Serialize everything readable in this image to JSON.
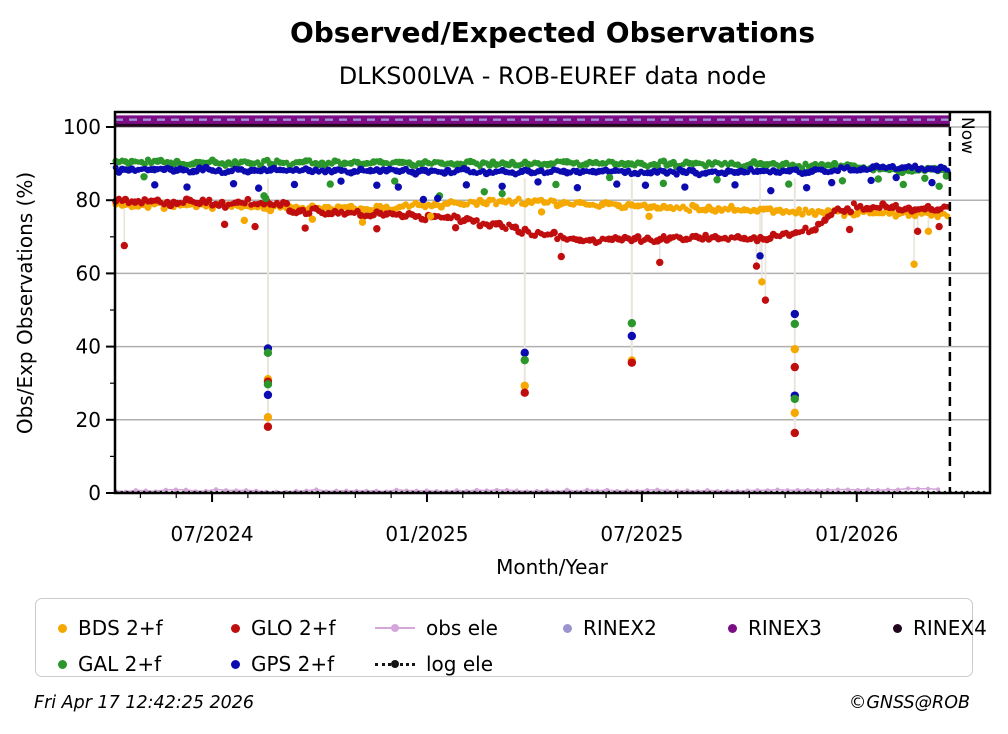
{
  "title": "Observed/Expected Observations",
  "subtitle": "DLKS00LVA - ROB-EUREF data node",
  "footer": {
    "generated": "Fri Apr 17 12:42:25 2026",
    "credit": "©GNSS@ROB"
  },
  "now": {
    "label": "Now",
    "month": 20.6
  },
  "colors": {
    "bds": "#f5a800",
    "glo": "#c00d0d",
    "gal": "#2b962b",
    "gps": "#0b0bb0",
    "obs_ele": "#d4a6da",
    "log_ele": "#141414",
    "rinex2": "#9b94d0",
    "rinex3": "#7c0d86",
    "rinex4": "#23071f",
    "grid": "#b0b0b0",
    "stem": "#e9e5dd"
  },
  "chart_data": {
    "type": "scatter",
    "title": "Observed/Expected Observations",
    "subtitle": "DLKS00LVA - ROB-EUREF data node",
    "xlabel": "Month/Year",
    "ylabel": "Obs/Exp Observations (%)",
    "x_unit": "months since 2024-07",
    "xlim": [
      -2.71,
      21.72
    ],
    "ylim": [
      0,
      104.1
    ],
    "x_ticks": [
      {
        "m": 0,
        "label": "07/2024"
      },
      {
        "m": 6,
        "label": "01/2025"
      },
      {
        "m": 12,
        "label": "07/2025"
      },
      {
        "m": 18,
        "label": "01/2026"
      }
    ],
    "x_minor_step": 1,
    "y_ticks": [
      0,
      20,
      40,
      60,
      80,
      100
    ],
    "y_minor_ticks": [
      10,
      30,
      50,
      70,
      90
    ],
    "grid": "horizontal",
    "legend_position": "bottom",
    "series": [
      {
        "name": "BDS 2+f",
        "type": "band",
        "color": "#f5a800",
        "r": 3.3,
        "step": 0.09,
        "jitter": 0.65,
        "trend": [
          [
            -2.71,
            78.8
          ],
          [
            0,
            78.5
          ],
          [
            2,
            78.1
          ],
          [
            3.5,
            77.7
          ],
          [
            5,
            77.9
          ],
          [
            6.5,
            78.9
          ],
          [
            8,
            79.8
          ],
          [
            9.5,
            79.5
          ],
          [
            11,
            78.9
          ],
          [
            12.5,
            78.1
          ],
          [
            14,
            77.7
          ],
          [
            15.5,
            77.3
          ],
          [
            16.8,
            76.7
          ],
          [
            18,
            76.5
          ],
          [
            19.5,
            76.2
          ],
          [
            20.55,
            76.0
          ]
        ],
        "outliers": [
          [
            0.9,
            74.5
          ],
          [
            2.8,
            74.8
          ],
          [
            4.2,
            74.0
          ],
          [
            6.1,
            75.6
          ],
          [
            9.2,
            76.8
          ],
          [
            12.2,
            75.6
          ],
          [
            15.35,
            57.7
          ],
          [
            19.6,
            62.5
          ],
          [
            20.0,
            71.5
          ]
        ]
      },
      {
        "name": "GLO 2+f",
        "type": "band",
        "color": "#c00d0d",
        "r": 3.3,
        "step": 0.09,
        "jitter": 0.8,
        "trend": [
          [
            -2.71,
            79.8
          ],
          [
            0,
            79.3
          ],
          [
            1.9,
            78.8
          ],
          [
            2.4,
            77.0
          ],
          [
            5,
            76.3
          ],
          [
            7,
            75.0
          ],
          [
            8,
            73.0
          ],
          [
            9,
            71.0
          ],
          [
            10,
            69.6
          ],
          [
            11,
            69.2
          ],
          [
            12,
            69.2
          ],
          [
            13,
            69.4
          ],
          [
            14,
            69.9
          ],
          [
            15,
            69.4
          ],
          [
            16,
            70.4
          ],
          [
            16.9,
            72.5
          ],
          [
            17.4,
            77.0
          ],
          [
            18,
            78.3
          ],
          [
            19,
            78.0
          ],
          [
            20.55,
            77.5
          ]
        ],
        "outliers": [
          [
            -2.45,
            67.6
          ],
          [
            0.35,
            73.4
          ],
          [
            1.2,
            72.8
          ],
          [
            2.6,
            72.4
          ],
          [
            4.6,
            72.2
          ],
          [
            6.8,
            72.5
          ],
          [
            9.75,
            64.6
          ],
          [
            12.5,
            63.0
          ],
          [
            15.2,
            62.0
          ],
          [
            15.45,
            52.7
          ],
          [
            17.8,
            72.0
          ],
          [
            19.7,
            71.5
          ],
          [
            20.3,
            72.8
          ]
        ]
      },
      {
        "name": "GAL 2+f",
        "type": "band",
        "color": "#2b962b",
        "r": 3.3,
        "step": 0.09,
        "jitter": 0.55,
        "trend": [
          [
            -2.71,
            90.4
          ],
          [
            2,
            90.1
          ],
          [
            6,
            90.0
          ],
          [
            10,
            90.1
          ],
          [
            14,
            89.9
          ],
          [
            17,
            89.5
          ],
          [
            18.5,
            88.7
          ],
          [
            19.5,
            88.3
          ],
          [
            20.55,
            88.2
          ]
        ],
        "outliers": [
          [
            -1.9,
            86.4
          ],
          [
            1.45,
            81.2
          ],
          [
            1.5,
            80.5
          ],
          [
            3.3,
            84.4
          ],
          [
            5.1,
            85.2
          ],
          [
            6.35,
            81.2
          ],
          [
            7.6,
            82.3
          ],
          [
            8.1,
            81.8
          ],
          [
            9.6,
            84.3
          ],
          [
            11.1,
            86.2
          ],
          [
            12.6,
            84.6
          ],
          [
            14.1,
            85.6
          ],
          [
            16.1,
            84.4
          ],
          [
            17.6,
            85.3
          ],
          [
            18.6,
            85.8
          ],
          [
            19.3,
            84.3
          ],
          [
            19.9,
            86.0
          ],
          [
            20.3,
            83.8
          ],
          [
            20.5,
            86.6
          ]
        ]
      },
      {
        "name": "GPS 2+f",
        "type": "band",
        "color": "#0b0bb0",
        "r": 3.3,
        "step": 0.09,
        "jitter": 0.5,
        "trend": [
          [
            -2.71,
            88.3
          ],
          [
            3,
            88.1
          ],
          [
            6,
            88.0
          ],
          [
            9,
            87.8
          ],
          [
            12,
            87.7
          ],
          [
            15,
            87.7
          ],
          [
            17,
            88.0
          ],
          [
            18,
            88.6
          ],
          [
            19,
            89.0
          ],
          [
            20.55,
            88.6
          ]
        ],
        "outliers": [
          [
            -1.6,
            84.2
          ],
          [
            -0.7,
            83.6
          ],
          [
            0.6,
            84.5
          ],
          [
            1.3,
            83.3
          ],
          [
            2.3,
            84.3
          ],
          [
            3.6,
            85.2
          ],
          [
            4.6,
            84.1
          ],
          [
            5.2,
            83.6
          ],
          [
            5.9,
            80.2
          ],
          [
            6.3,
            80.5
          ],
          [
            7.1,
            84.2
          ],
          [
            8.1,
            83.8
          ],
          [
            9.1,
            85.0
          ],
          [
            10.2,
            83.4
          ],
          [
            11.3,
            84.4
          ],
          [
            12.1,
            84.1
          ],
          [
            13.2,
            83.6
          ],
          [
            14.6,
            84.2
          ],
          [
            15.3,
            64.8
          ],
          [
            15.6,
            82.6
          ],
          [
            16.6,
            83.4
          ],
          [
            17.3,
            84.8
          ],
          [
            18.4,
            85.4
          ],
          [
            19.1,
            86.2
          ],
          [
            20.1,
            84.8
          ]
        ]
      },
      {
        "name": "obs ele",
        "type": "line",
        "color": "#d4a6da",
        "r": 2.1,
        "step": 0.28,
        "jitter": 0.5,
        "line_width": 1.5,
        "trend": [
          [
            -2.71,
            0.6
          ],
          [
            0,
            0.75
          ],
          [
            2,
            0.55
          ],
          [
            4,
            0.8
          ],
          [
            6,
            0.6
          ],
          [
            8,
            0.75
          ],
          [
            10,
            0.6
          ],
          [
            12,
            0.7
          ],
          [
            14,
            0.6
          ],
          [
            16,
            0.75
          ],
          [
            18,
            0.9
          ],
          [
            19.5,
            1.3
          ],
          [
            20.55,
            1.1
          ]
        ]
      },
      {
        "name": "log ele",
        "type": "dotted-hline",
        "color": "#141414",
        "y": 0.2,
        "width": 2.8,
        "dash": [
          2.2,
          3.4
        ],
        "x_end": 21.65
      },
      {
        "name": "RINEX4",
        "type": "thick-hline",
        "color": "#23071f",
        "y": 100.5,
        "width": 3.4,
        "x_end": 20.6
      },
      {
        "name": "RINEX3",
        "type": "thick-hline",
        "color": "#7c0d86",
        "y": 102.0,
        "width": 8.5,
        "x_end": 20.6
      },
      {
        "name": "RINEX2",
        "type": "dashed-hline",
        "color": "#9b94d0",
        "y": 102.0,
        "width": 2.4,
        "dash": [
          8,
          6
        ],
        "x_end": 20.6
      }
    ],
    "dips": [
      {
        "m": 1.56,
        "points": [
          [
            "GPS 2+f",
            39.5
          ],
          [
            "GAL 2+f",
            38.3
          ],
          [
            "BDS 2+f",
            31.1
          ],
          [
            "GLO 2+f",
            30.4
          ],
          [
            "GAL 2+f",
            29.7
          ],
          [
            "GPS 2+f",
            26.8
          ],
          [
            "BDS 2+f",
            20.7
          ],
          [
            "GLO 2+f",
            18.1
          ]
        ]
      },
      {
        "m": 8.73,
        "points": [
          [
            "GPS 2+f",
            38.3
          ],
          [
            "GAL 2+f",
            36.3
          ],
          [
            "BDS 2+f",
            29.3
          ],
          [
            "GLO 2+f",
            27.4
          ]
        ]
      },
      {
        "m": 11.72,
        "points": [
          [
            "GAL 2+f",
            46.4
          ],
          [
            "GPS 2+f",
            42.9
          ],
          [
            "BDS 2+f",
            36.2
          ],
          [
            "GLO 2+f",
            35.6
          ]
        ]
      },
      {
        "m": 16.27,
        "points": [
          [
            "GPS 2+f",
            48.9
          ],
          [
            "GAL 2+f",
            46.2
          ],
          [
            "BDS 2+f",
            39.3
          ],
          [
            "GLO 2+f",
            34.4
          ],
          [
            "GPS 2+f",
            26.6
          ],
          [
            "GAL 2+f",
            25.7
          ],
          [
            "BDS 2+f",
            21.9
          ],
          [
            "GLO 2+f",
            16.4
          ]
        ]
      }
    ]
  },
  "legend": {
    "items": [
      {
        "label": "BDS 2+f",
        "color": "#f5a800",
        "marker": "dot"
      },
      {
        "label": "GLO 2+f",
        "color": "#c00d0d",
        "marker": "dot"
      },
      {
        "label": "obs ele",
        "color": "#d4a6da",
        "marker": "line-dot"
      },
      {
        "label": "RINEX2",
        "color": "#9b94d0",
        "marker": "dot"
      },
      {
        "label": "RINEX3",
        "color": "#7c0d86",
        "marker": "dot"
      },
      {
        "label": "RINEX4",
        "color": "#23071f",
        "marker": "dot"
      },
      {
        "label": "GAL 2+f",
        "color": "#2b962b",
        "marker": "dot"
      },
      {
        "label": "GPS 2+f",
        "color": "#0b0bb0",
        "marker": "dot"
      },
      {
        "label": "log ele",
        "color": "#141414",
        "marker": "dash-dot"
      }
    ]
  }
}
